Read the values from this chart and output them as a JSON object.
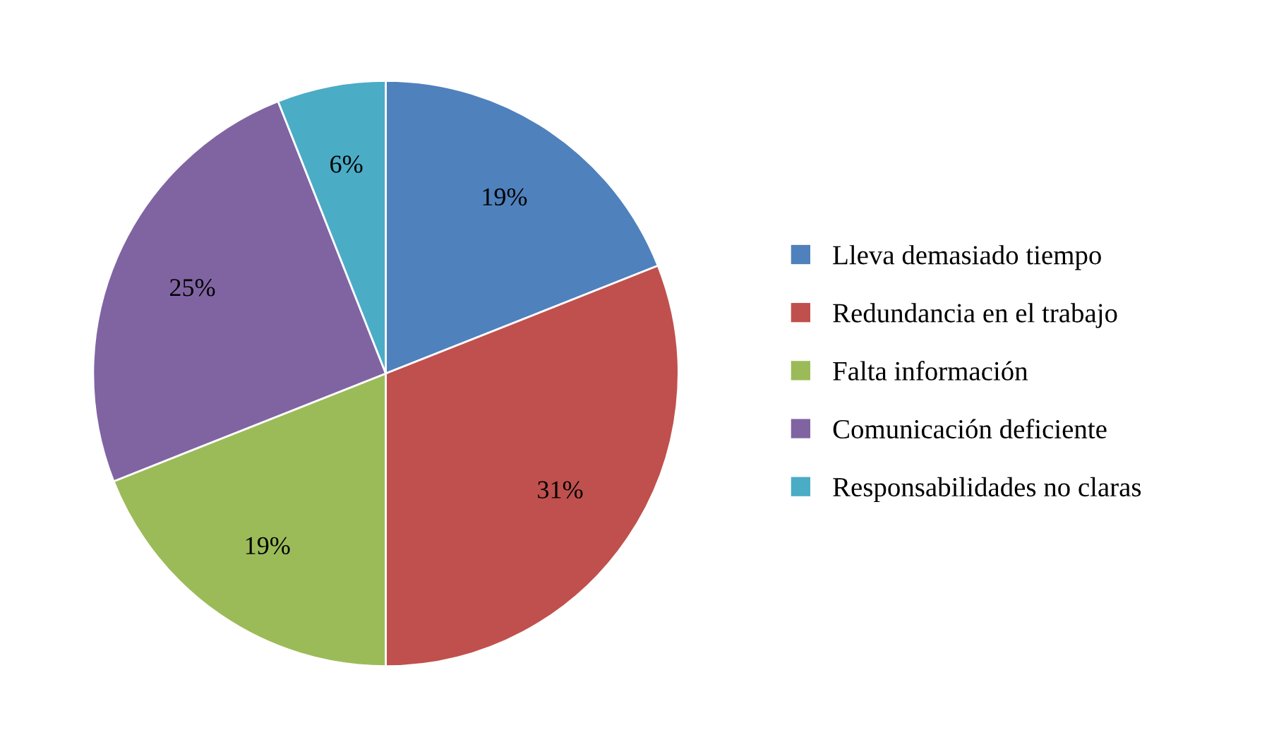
{
  "chart_data": {
    "type": "pie",
    "categories": [
      "Lleva demasiado tiempo",
      "Redundancia en el trabajo",
      "Falta información",
      "Comunicación deficiente",
      "Responsabilidades no claras"
    ],
    "values": [
      19,
      31,
      19,
      25,
      6
    ],
    "value_labels": [
      "19%",
      "31%",
      "19%",
      "25%",
      "6%"
    ],
    "colors": [
      "#4f81bd",
      "#c0504d",
      "#9bbb59",
      "#8064a2",
      "#4bacc6"
    ],
    "legend": "right"
  }
}
